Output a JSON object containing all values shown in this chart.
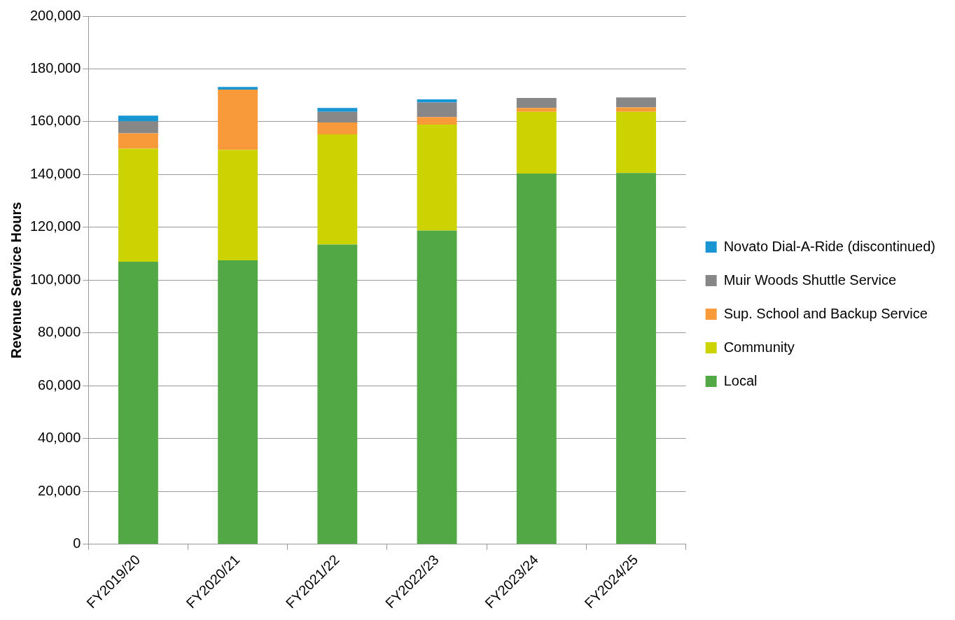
{
  "chart_data": {
    "type": "bar",
    "stacked": true,
    "ylabel": "Revenue Service Hours",
    "categories": [
      "FY2019/20",
      "FY2020/21",
      "FY2021/22",
      "FY2022/23",
      "FY2023/24",
      "FY2024/25"
    ],
    "series": [
      {
        "name": "Local",
        "color": "#53a846",
        "values": [
          107000,
          107500,
          113500,
          118800,
          140400,
          140600
        ]
      },
      {
        "name": "Community",
        "color": "#cbd400",
        "values": [
          42800,
          41800,
          41700,
          40100,
          23400,
          23200
        ]
      },
      {
        "name": "Sup. School and Backup Service",
        "color": "#f8993a",
        "values": [
          5800,
          22900,
          4500,
          2900,
          1400,
          1600
        ]
      },
      {
        "name": "Muir Woods Shuttle Service",
        "color": "#878787",
        "values": [
          4500,
          null,
          4100,
          5500,
          3800,
          3800
        ]
      },
      {
        "name": "Novato Dial-A-Ride (discontinued)",
        "color": "#1896d4",
        "values": [
          2200,
          1000,
          1400,
          1200,
          null,
          null
        ]
      }
    ],
    "ylim": [
      0,
      200000
    ],
    "yticks": [
      {
        "value": 0,
        "label": "0"
      },
      {
        "value": 20000,
        "label": "20,000"
      },
      {
        "value": 40000,
        "label": "40,000"
      },
      {
        "value": 60000,
        "label": "60,000"
      },
      {
        "value": 80000,
        "label": "80,000"
      },
      {
        "value": 100000,
        "label": "100,000"
      },
      {
        "value": 120000,
        "label": "120,000"
      },
      {
        "value": 140000,
        "label": "140,000"
      },
      {
        "value": 160000,
        "label": "160,000"
      },
      {
        "value": 180000,
        "label": "180,000"
      },
      {
        "value": 200000,
        "label": "200,000"
      }
    ],
    "grid": "y",
    "legend": "right"
  }
}
